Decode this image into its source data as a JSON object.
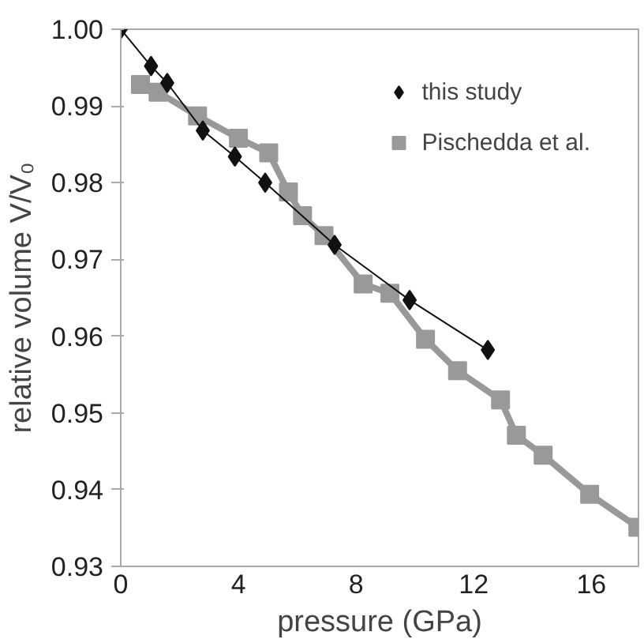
{
  "chart_data": {
    "type": "line",
    "xlabel": "pressure (GPa)",
    "ylabel": "relative volume V/V₀",
    "xlim": [
      0,
      17.6
    ],
    "ylim": [
      0.93,
      1.0
    ],
    "xticks": [
      0,
      4,
      8,
      12,
      16
    ],
    "yticks": [
      {
        "value": 0.93,
        "label": "0.93"
      },
      {
        "value": 0.94,
        "label": "0.94"
      },
      {
        "value": 0.95,
        "label": "0.95"
      },
      {
        "value": 0.96,
        "label": "0.96"
      },
      {
        "value": 0.97,
        "label": "0.97"
      },
      {
        "value": 0.98,
        "label": "0.98"
      },
      {
        "value": 0.99,
        "label": "0.99"
      },
      {
        "value": 1.0,
        "label": "1.00"
      }
    ],
    "grid": false,
    "legend": "top right",
    "series": [
      {
        "name": "this study",
        "color": "#111111",
        "marker": "diamond",
        "x": [
          0,
          1.03,
          1.58,
          2.79,
          3.88,
          4.91,
          7.27,
          9.82,
          12.48
        ],
        "values": [
          1.0,
          0.9952,
          0.993,
          0.9868,
          0.9834,
          0.98,
          0.9719,
          0.9647,
          0.9582
        ]
      },
      {
        "name": "Pischedda et al.",
        "color": "#999999",
        "marker": "square",
        "x": [
          0.67,
          1.27,
          2.61,
          4.0,
          5.03,
          5.7,
          6.18,
          6.91,
          8.24,
          9.15,
          10.36,
          11.45,
          12.91,
          13.45,
          14.36,
          15.94,
          17.58
        ],
        "values": [
          0.9928,
          0.9918,
          0.9887,
          0.9858,
          0.9839,
          0.9788,
          0.9757,
          0.9731,
          0.9668,
          0.9656,
          0.9596,
          0.9555,
          0.9517,
          0.9471,
          0.9445,
          0.9394,
          0.9351
        ]
      }
    ]
  }
}
